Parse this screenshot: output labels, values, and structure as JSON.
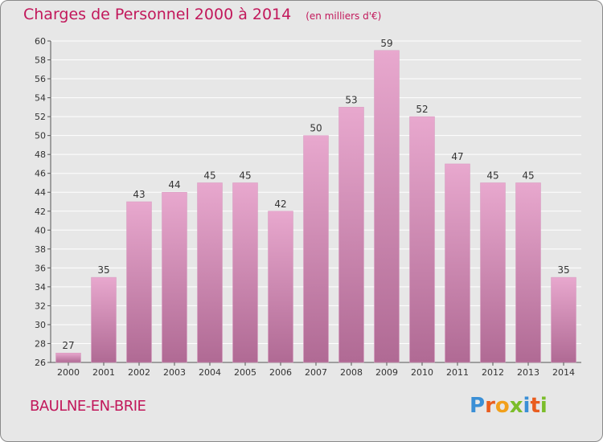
{
  "title": "Charges de Personnel 2000 à 2014",
  "subtitle": "(en milliers d'€)",
  "commune": "BAULNE-EN-BRIE",
  "logo": {
    "text": "Proxiti",
    "letters": [
      {
        "ch": "P",
        "color": "#3a8fd6"
      },
      {
        "ch": "r",
        "color": "#e95d1f"
      },
      {
        "ch": "o",
        "color": "#f2a01b"
      },
      {
        "ch": "x",
        "color": "#7bbd2a"
      },
      {
        "ch": "i",
        "color": "#3a8fd6"
      },
      {
        "ch": "t",
        "color": "#e95d1f"
      },
      {
        "ch": "i",
        "color": "#7bbd2a"
      }
    ]
  },
  "colors": {
    "bar_top": "#e8a8ce",
    "bar_bottom": "#b06a94",
    "accent": "#c2185b",
    "plot_bg": "#e7e7e7",
    "grid": "#ffffff"
  },
  "chart_data": {
    "type": "bar",
    "categories": [
      "2000",
      "2001",
      "2002",
      "2003",
      "2004",
      "2005",
      "2006",
      "2007",
      "2008",
      "2009",
      "2010",
      "2011",
      "2012",
      "2013",
      "2014"
    ],
    "values": [
      27,
      35,
      43,
      44,
      45,
      45,
      42,
      50,
      53,
      59,
      52,
      47,
      45,
      45,
      35
    ],
    "ylim": [
      26,
      60
    ],
    "yticks": [
      26,
      28,
      30,
      32,
      34,
      36,
      38,
      40,
      42,
      44,
      46,
      48,
      50,
      52,
      54,
      56,
      58,
      60
    ],
    "grid": true,
    "xlabel": "",
    "ylabel": ""
  }
}
